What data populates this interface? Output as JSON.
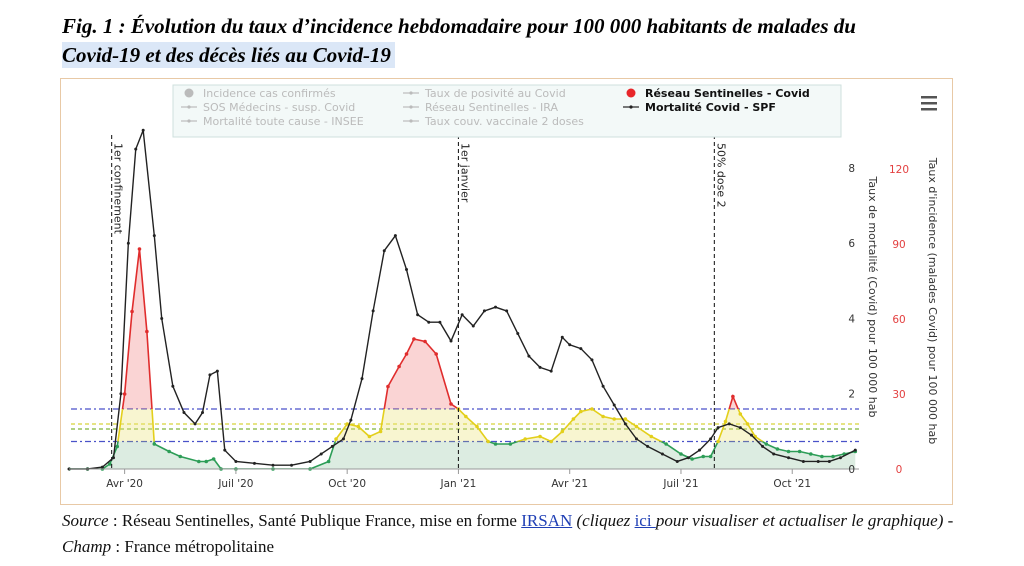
{
  "title": {
    "line1": "Fig. 1 : Évolution du taux d’incidence hebdomadaire pour 100 000 habitants de malades du",
    "line2": "Covid-19 et des décès liés au Covid-19"
  },
  "source": {
    "label": "Source",
    "sep1": " : ",
    "text1": "Réseau Sentinelles, Santé Publique France, mise en forme ",
    "link1": "IRSAN",
    "text2": " (cliquez ",
    "link2": "ici ",
    "text3": "pour visualiser et actualiser le graphique) - ",
    "champ_label": "Champ",
    "sep2": " : ",
    "champ": "France métropolitaine"
  },
  "chart_data": {
    "type": "line",
    "menu_icon": "hamburger-menu-icon",
    "legend": {
      "placement": "top-center",
      "items": [
        {
          "label": "Incidence cas confirmés",
          "symbol": "dot",
          "active": false
        },
        {
          "label": "Taux de posivité au Covid",
          "symbol": "line-marker",
          "active": false
        },
        {
          "label": "Réseau Sentinelles - Covid",
          "symbol": "dot",
          "active": true,
          "color": "#e8262a"
        },
        {
          "label": "SOS Médecins - susp. Covid",
          "symbol": "line-marker",
          "active": false
        },
        {
          "label": "Réseau Sentinelles - IRA",
          "symbol": "line-marker",
          "active": false
        },
        {
          "label": "Mortalité Covid - SPF",
          "symbol": "line-marker",
          "active": true,
          "color": "#222222"
        },
        {
          "label": "Mortalité toute cause - INSEE",
          "symbol": "line-marker",
          "active": false
        },
        {
          "label": "Taux couv. vaccinale 2 doses",
          "symbol": "line-marker",
          "active": false
        }
      ]
    },
    "x_axis": {
      "ticks": [
        "Avr '20",
        "Juil '20",
        "Oct '20",
        "Jan '21",
        "Avr '21",
        "Juil '21",
        "Oct '21"
      ],
      "tick_months": [
        0,
        3,
        6,
        9,
        12,
        15,
        18
      ],
      "xlim_months": [
        -1.5,
        19.8
      ]
    },
    "y_axis_mortality": {
      "label": "Taux de mortalité (Covid) pour 100 000 hab",
      "ticks": [
        0,
        2,
        4,
        6,
        8
      ],
      "ylim": [
        0,
        9.3
      ]
    },
    "y_axis_incidence": {
      "label": "Taux d'incidence (malades Covid) pour 100 000 hab",
      "ticks": [
        0,
        30,
        60,
        90,
        120
      ],
      "ylim": [
        0,
        140
      ]
    },
    "annotations": [
      {
        "label": "1er confinement",
        "month": -0.35
      },
      {
        "label": "1er janvier",
        "month": 9.0
      },
      {
        "label": "50% dose 2",
        "month": 15.9
      }
    ],
    "thresholds": [
      {
        "value": 11,
        "style": "dash-dot",
        "color": "#4a52c9"
      },
      {
        "value": 16,
        "style": "dashed",
        "color": "#7fb53b"
      },
      {
        "value": 18,
        "style": "dashed",
        "color": "#d8d43a"
      },
      {
        "value": 24,
        "style": "dash-dot",
        "color": "#4a52c9"
      }
    ],
    "zone_colors": {
      "low": "#2d9d57",
      "mid": "#e3cf1b",
      "high": "#e02d2d"
    },
    "series": [
      {
        "name": "Réseau Sentinelles - Covid",
        "axis": "incidence",
        "color": "#e8262a",
        "x": [
          -1.5,
          -1.0,
          -0.6,
          -0.4,
          -0.2,
          0.0,
          0.2,
          0.4,
          0.6,
          0.8,
          1.2,
          1.5,
          2.0,
          2.2,
          2.4,
          2.6,
          3.0,
          4.0,
          5.0,
          5.5,
          5.7,
          6.0,
          6.3,
          6.6,
          6.9,
          7.1,
          7.4,
          7.6,
          7.8,
          8.1,
          8.4,
          8.8,
          9.0,
          9.2,
          9.5,
          9.8,
          10.0,
          10.4,
          10.8,
          11.2,
          11.5,
          11.8,
          12.1,
          12.3,
          12.6,
          12.9,
          13.2,
          13.5,
          13.8,
          14.2,
          14.6,
          15.0,
          15.3,
          15.6,
          15.8,
          16.0,
          16.2,
          16.4,
          16.6,
          16.8,
          17.0,
          17.3,
          17.6,
          17.9,
          18.2,
          18.5,
          18.8,
          19.1,
          19.4,
          19.7
        ],
        "y": [
          0,
          0,
          0,
          2,
          9,
          30,
          63,
          88,
          55,
          10,
          7,
          5,
          3,
          3,
          4,
          0,
          0,
          0,
          0,
          3,
          12,
          18,
          17,
          13,
          15,
          33,
          41,
          46,
          52,
          51,
          46,
          26,
          24,
          21,
          17,
          11,
          10,
          10,
          12,
          13,
          11,
          15,
          20,
          23,
          24,
          21,
          20,
          20,
          17,
          13,
          10,
          6,
          4,
          5,
          5,
          11,
          19,
          29,
          22,
          18,
          13,
          10,
          8,
          7,
          7,
          6,
          5,
          5,
          6,
          7
        ]
      },
      {
        "name": "Mortalité Covid - SPF",
        "axis": "mortality",
        "color": "#222222",
        "x": [
          -1.5,
          -1.0,
          -0.6,
          -0.3,
          -0.1,
          0.1,
          0.3,
          0.5,
          0.8,
          1.0,
          1.3,
          1.6,
          1.9,
          2.1,
          2.3,
          2.5,
          2.7,
          3.0,
          3.5,
          4.0,
          4.5,
          5.0,
          5.3,
          5.6,
          5.9,
          6.1,
          6.4,
          6.7,
          7.0,
          7.3,
          7.6,
          7.9,
          8.2,
          8.5,
          8.8,
          9.1,
          9.4,
          9.7,
          10.0,
          10.3,
          10.6,
          10.9,
          11.2,
          11.5,
          11.8,
          12.0,
          12.3,
          12.6,
          12.9,
          13.2,
          13.5,
          13.8,
          14.1,
          14.5,
          14.9,
          15.2,
          15.5,
          15.8,
          16.0,
          16.3,
          16.6,
          16.9,
          17.2,
          17.5,
          17.9,
          18.3,
          18.7,
          19.0,
          19.3,
          19.7
        ],
        "y": [
          0,
          0,
          0.05,
          0.3,
          2.0,
          6.0,
          8.5,
          9.0,
          6.2,
          4.0,
          2.2,
          1.5,
          1.2,
          1.5,
          2.5,
          2.6,
          0.5,
          0.2,
          0.15,
          0.1,
          0.1,
          0.2,
          0.4,
          0.6,
          0.8,
          1.3,
          2.4,
          4.2,
          5.8,
          6.2,
          5.3,
          4.1,
          3.9,
          3.9,
          3.4,
          4.1,
          3.8,
          4.2,
          4.3,
          4.2,
          3.6,
          3.0,
          2.7,
          2.6,
          3.5,
          3.3,
          3.2,
          2.9,
          2.2,
          1.7,
          1.2,
          0.8,
          0.6,
          0.4,
          0.2,
          0.3,
          0.5,
          0.8,
          1.1,
          1.2,
          1.1,
          0.9,
          0.6,
          0.4,
          0.3,
          0.2,
          0.2,
          0.2,
          0.3,
          0.5
        ]
      }
    ]
  }
}
